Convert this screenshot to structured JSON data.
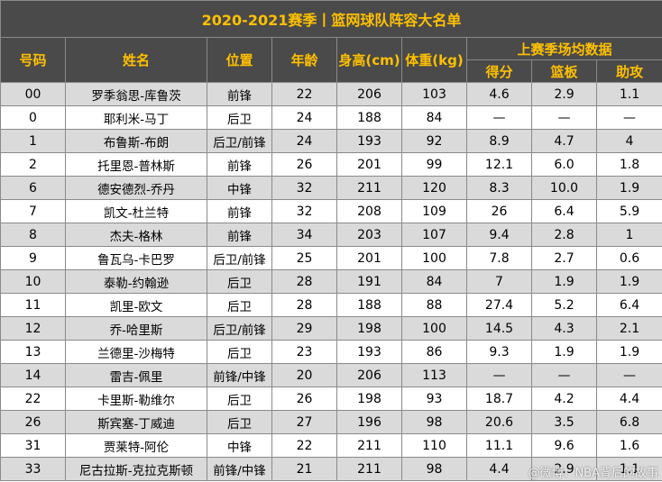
{
  "title": "2020-2021赛季丨篮网球队阵容大名单",
  "headers": {
    "number": "号码",
    "name": "姓名",
    "position": "位置",
    "age": "年龄",
    "height": "身高(cm)",
    "weight": "体重(kg)",
    "last_season": "上赛季场均数据",
    "points": "得分",
    "rebounds": "篮板",
    "assists": "助攻"
  },
  "players": [
    {
      "number": "00",
      "name": "罗季翁思-库鲁茨",
      "position": "前锋",
      "age": "22",
      "height": "206",
      "weight": "103",
      "points": "4.6",
      "rebounds": "2.9",
      "assists": "1.1"
    },
    {
      "number": "0",
      "name": "耶利米-马丁",
      "position": "后卫",
      "age": "24",
      "height": "188",
      "weight": "84",
      "points": "—",
      "rebounds": "—",
      "assists": "—"
    },
    {
      "number": "1",
      "name": "布鲁斯-布朗",
      "position": "后卫/前锋",
      "age": "24",
      "height": "193",
      "weight": "92",
      "points": "8.9",
      "rebounds": "4.7",
      "assists": "4"
    },
    {
      "number": "2",
      "name": "托里恩-普林斯",
      "position": "前锋",
      "age": "26",
      "height": "201",
      "weight": "99",
      "points": "12.1",
      "rebounds": "6.0",
      "assists": "1.8"
    },
    {
      "number": "6",
      "name": "德安德烈-乔丹",
      "position": "中锋",
      "age": "32",
      "height": "211",
      "weight": "120",
      "points": "8.3",
      "rebounds": "10.0",
      "assists": "1.9"
    },
    {
      "number": "7",
      "name": "凯文-杜兰特",
      "position": "前锋",
      "age": "32",
      "height": "208",
      "weight": "109",
      "points": "26",
      "rebounds": "6.4",
      "assists": "5.9"
    },
    {
      "number": "8",
      "name": "杰夫-格林",
      "position": "前锋",
      "age": "34",
      "height": "203",
      "weight": "107",
      "points": "9.4",
      "rebounds": "2.8",
      "assists": "1"
    },
    {
      "number": "9",
      "name": "鲁瓦乌-卡巴罗",
      "position": "后卫/前锋",
      "age": "25",
      "height": "201",
      "weight": "100",
      "points": "7.8",
      "rebounds": "2.7",
      "assists": "0.6"
    },
    {
      "number": "10",
      "name": "泰勒-约翰逊",
      "position": "后卫",
      "age": "28",
      "height": "191",
      "weight": "84",
      "points": "7",
      "rebounds": "1.9",
      "assists": "1.9"
    },
    {
      "number": "11",
      "name": "凯里-欧文",
      "position": "后卫",
      "age": "28",
      "height": "188",
      "weight": "88",
      "points": "27.4",
      "rebounds": "5.2",
      "assists": "6.4"
    },
    {
      "number": "12",
      "name": "乔-哈里斯",
      "position": "后卫/前锋",
      "age": "29",
      "height": "198",
      "weight": "100",
      "points": "14.5",
      "rebounds": "4.3",
      "assists": "2.1"
    },
    {
      "number": "13",
      "name": "兰德里-沙梅特",
      "position": "后卫",
      "age": "23",
      "height": "193",
      "weight": "86",
      "points": "9.3",
      "rebounds": "1.9",
      "assists": "1.9"
    },
    {
      "number": "14",
      "name": "雷吉-佩里",
      "position": "前锋/中锋",
      "age": "20",
      "height": "206",
      "weight": "113",
      "points": "—",
      "rebounds": "—",
      "assists": "—"
    },
    {
      "number": "22",
      "name": "卡里斯-勒维尔",
      "position": "后卫",
      "age": "26",
      "height": "198",
      "weight": "93",
      "points": "18.7",
      "rebounds": "4.2",
      "assists": "4.4"
    },
    {
      "number": "26",
      "name": "斯宾塞-丁威迪",
      "position": "后卫",
      "age": "27",
      "height": "196",
      "weight": "98",
      "points": "20.6",
      "rebounds": "3.5",
      "assists": "6.8"
    },
    {
      "number": "31",
      "name": "贾莱特-阿伦",
      "position": "中锋",
      "age": "22",
      "height": "211",
      "weight": "110",
      "points": "11.1",
      "rebounds": "9.6",
      "assists": "1.6"
    },
    {
      "number": "33",
      "name": "尼古拉斯-克拉克斯顿",
      "position": "前锋/中锋",
      "age": "21",
      "height": "211",
      "weight": "98",
      "points": "4.4",
      "rebounds": "2.9",
      "assists": "1.1"
    }
  ],
  "watermark": "@微博：NBA背后的故事"
}
